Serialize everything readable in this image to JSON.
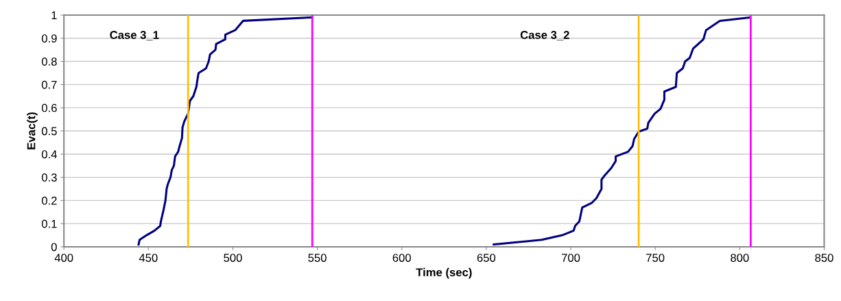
{
  "chart_data": {
    "type": "line",
    "xlabel": "Time (sec)",
    "ylabel": "Evac(t)",
    "series": [
      {
        "color": "#000080",
        "x": [
          444.2,
          444.8,
          448.9,
          453.6,
          457.0,
          457.4,
          459.0,
          460.1,
          460.8,
          461.5,
          463.1,
          463.8,
          465.1,
          465.8,
          467.6,
          468.5,
          469.9,
          470.2,
          471.2,
          472.5,
          473.5,
          474.6,
          476.6,
          478.4,
          479.0,
          479.7,
          484.1,
          485.7,
          486.5,
          489.7,
          490.1,
          495.5,
          495.5,
          501.4,
          506.0,
          546.9
        ],
        "values": [
          0.01,
          0.03,
          0.05,
          0.07,
          0.09,
          0.11,
          0.16,
          0.2,
          0.25,
          0.27,
          0.3,
          0.33,
          0.35,
          0.39,
          0.41,
          0.435,
          0.47,
          0.515,
          0.54,
          0.56,
          0.575,
          0.63,
          0.65,
          0.69,
          0.72,
          0.75,
          0.77,
          0.8,
          0.83,
          0.85,
          0.875,
          0.895,
          0.915,
          0.935,
          0.975,
          0.99
        ]
      },
      {
        "color": "#000080",
        "x": [
          654.4,
          682.8,
          694.9,
          701.7,
          702.6,
          705.1,
          706.8,
          712.5,
          715.2,
          718.2,
          718.2,
          720.3,
          724.0,
          726.6,
          726.6,
          733.9,
          736.6,
          737.5,
          740.2,
          745.3,
          745.9,
          749.7,
          753.1,
          755.4,
          755.4,
          762.2,
          762.8,
          766.3,
          767.7,
          770.4,
          772.4,
          778.5,
          780.1,
          788.2,
          806.2
        ],
        "values": [
          0.01,
          0.03,
          0.05,
          0.07,
          0.09,
          0.11,
          0.17,
          0.19,
          0.21,
          0.25,
          0.29,
          0.31,
          0.34,
          0.37,
          0.39,
          0.41,
          0.435,
          0.465,
          0.497,
          0.51,
          0.535,
          0.575,
          0.595,
          0.635,
          0.67,
          0.69,
          0.75,
          0.77,
          0.8,
          0.815,
          0.855,
          0.895,
          0.935,
          0.975,
          0.99
        ]
      }
    ],
    "annotations": [
      "Case 3_1",
      "Case 3_2"
    ],
    "ref_lines": [
      {
        "axis": "x",
        "value": 473.5,
        "color": "#ffc000"
      },
      {
        "axis": "x",
        "value": 547,
        "color": "#ff00ff"
      },
      {
        "axis": "x",
        "value": 740.2,
        "color": "#ffc000"
      },
      {
        "axis": "x",
        "value": 806.5,
        "color": "#ff00ff"
      }
    ],
    "xlim": [
      400,
      850
    ],
    "xticks": [
      400,
      450,
      500,
      550,
      600,
      650,
      700,
      750,
      800,
      850
    ],
    "ylim": [
      0,
      1
    ],
    "yticks": [
      0,
      0.1,
      0.2,
      0.3,
      0.4,
      0.5,
      0.6,
      0.7,
      0.8,
      0.9,
      1
    ],
    "grid": "y",
    "legend": false,
    "marker": "none",
    "line_style": "solid"
  }
}
